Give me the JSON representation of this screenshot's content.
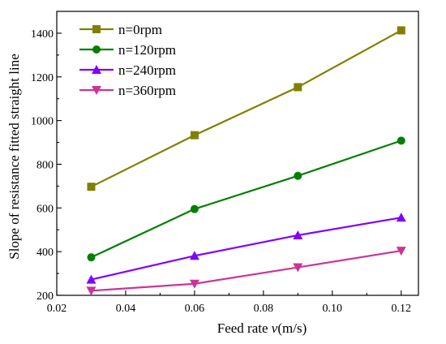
{
  "chart_data": {
    "type": "line",
    "title": "",
    "xlabel": "Feed rate v(m/s)",
    "xlabel_prefix": "Feed rate ",
    "xlabel_var": "v",
    "xlabel_unit": "(m/s)",
    "ylabel": "Slope of resistance fitted straight line",
    "xlim": [
      0.02,
      0.125
    ],
    "ylim": [
      200,
      1500
    ],
    "xticks": [
      0.02,
      0.04,
      0.06,
      0.08,
      0.1,
      0.12
    ],
    "xtick_labels": [
      "0.02",
      "0.04",
      "0.06",
      "0.08",
      "0.10",
      "0.12"
    ],
    "yticks": [
      200,
      400,
      600,
      800,
      1000,
      1200,
      1400
    ],
    "ytick_labels": [
      "200",
      "400",
      "600",
      "800",
      "1000",
      "1200",
      "1400"
    ],
    "x": [
      0.03,
      0.06,
      0.09,
      0.12
    ],
    "grid": false,
    "legend_position": "top-left",
    "series": [
      {
        "name": "n=0rpm",
        "values": [
          697,
          933,
          1153,
          1413
        ],
        "color": "#808000",
        "marker": "square"
      },
      {
        "name": "n=120rpm",
        "values": [
          374,
          595,
          747,
          908
        ],
        "color": "#008000",
        "marker": "circle"
      },
      {
        "name": "n=240rpm",
        "values": [
          272,
          381,
          475,
          556
        ],
        "color": "#8000ff",
        "marker": "triangle-up"
      },
      {
        "name": "n=360rpm",
        "values": [
          221,
          253,
          328,
          404
        ],
        "color": "#cc3399",
        "marker": "triangle-down"
      }
    ]
  }
}
